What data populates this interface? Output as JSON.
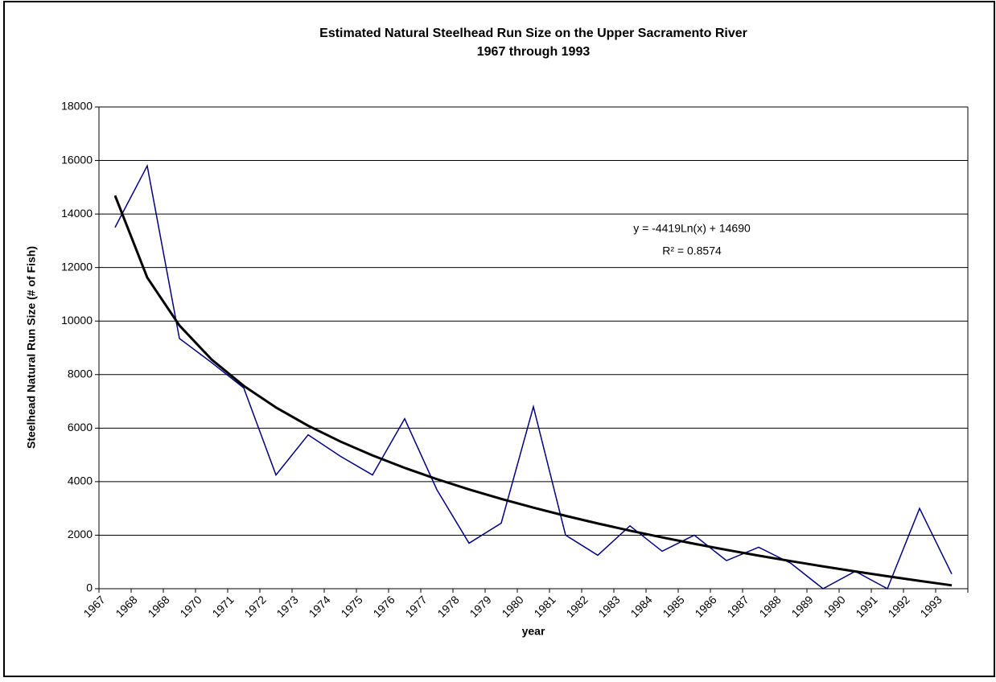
{
  "chart_data": {
    "type": "line",
    "title": "Estimated Natural Steelhead Run Size on the Upper Sacramento River",
    "subtitle": "1967 through 1993",
    "y_label": "Steelhead Natural Run Size (# of Fish)",
    "x_label": "year",
    "categories": [
      "1967",
      "1968",
      "1968",
      "1970",
      "1971",
      "1972",
      "1973",
      "1974",
      "1975",
      "1976",
      "1977",
      "1978",
      "1979",
      "1980",
      "1981",
      "1982",
      "1983",
      "1984",
      "1985",
      "1986",
      "1987",
      "1988",
      "1989",
      "1990",
      "1991",
      "1992",
      "1993"
    ],
    "series": [
      {
        "color": "#000080",
        "values": [
          13500,
          15800,
          9350,
          8450,
          7500,
          4250,
          5750,
          4950,
          4250,
          6350,
          3700,
          1700,
          2450,
          6800,
          2000,
          1250,
          2350,
          1400,
          2000,
          1050,
          1550,
          950,
          0,
          650,
          0,
          3000,
          550
        ]
      }
    ],
    "trendline": {
      "color": "#000000",
      "values": [
        14690,
        11627,
        9835,
        8564,
        7578,
        6772,
        6091,
        5501,
        4980,
        4515,
        4094,
        3709,
        3356,
        3028,
        2723,
        2438,
        2170,
        1917,
        1679,
        1452,
        1236,
        1031,
        834,
        646,
        466,
        292,
        126
      ]
    },
    "annotations": [
      "y = -4419Ln(x) + 14690",
      "R² = 0.8574"
    ],
    "ylim": [
      0,
      18000
    ],
    "yticks": [
      0,
      2000,
      4000,
      6000,
      8000,
      10000,
      12000,
      14000,
      16000,
      18000
    ],
    "grid": true
  }
}
